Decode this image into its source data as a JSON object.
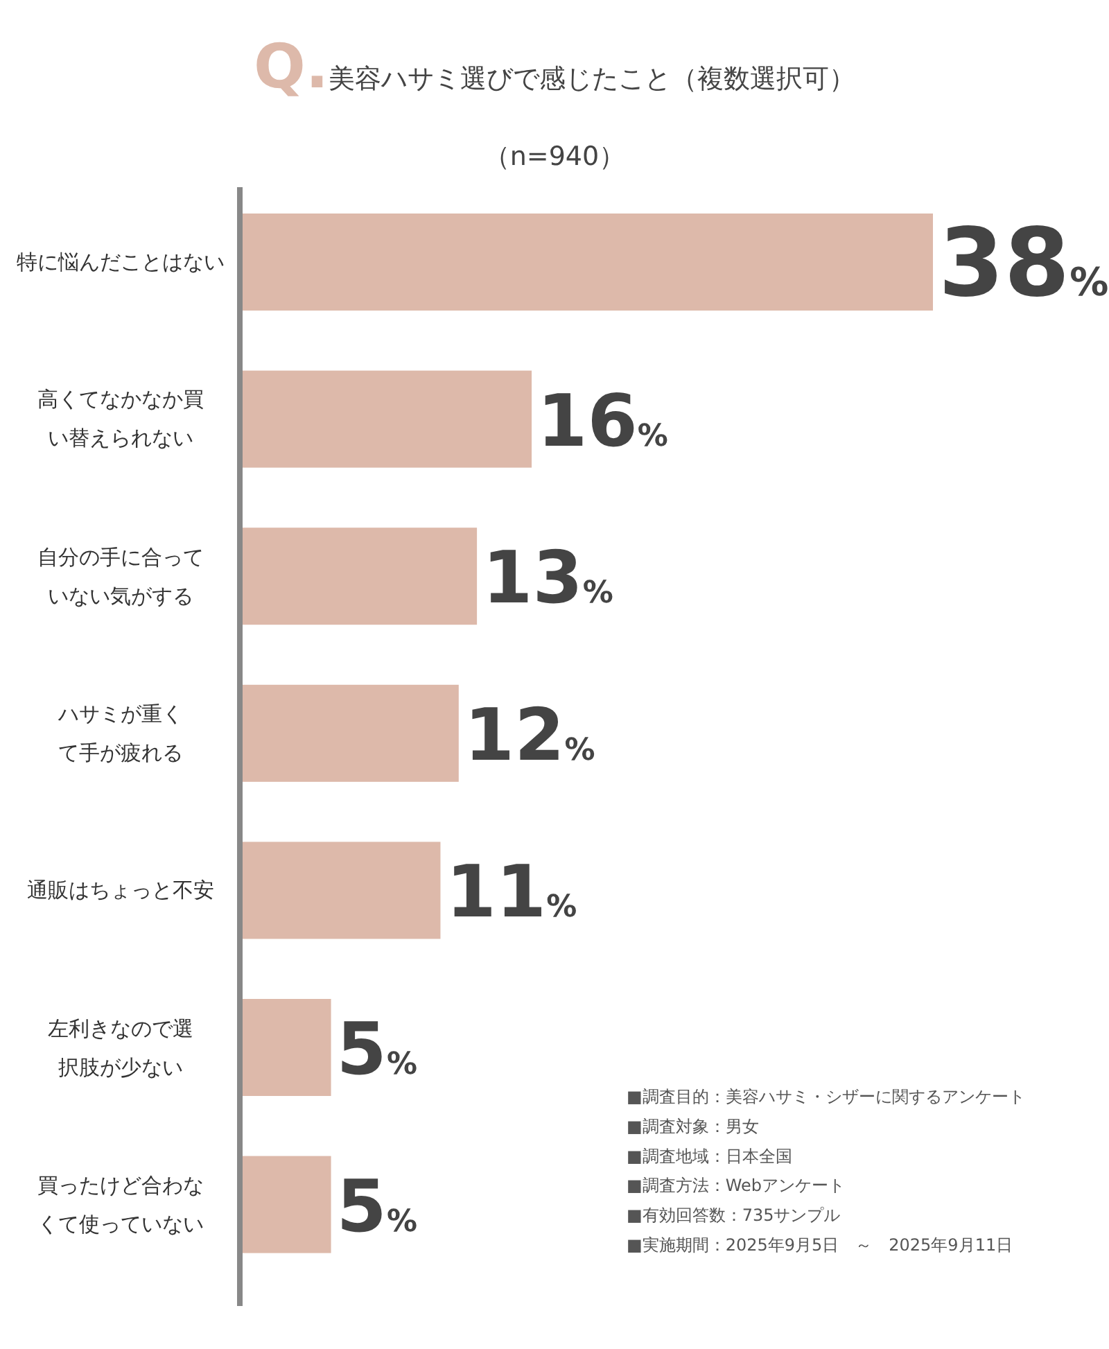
{
  "chart_data": {
    "type": "bar",
    "orientation": "horizontal",
    "title": "**Q.**美容ハサミ選びで感じたこと（複数選択可）",
    "subtitle": "（n=940）",
    "categories": [
      "特に悩んだことはない",
      "高くてなかなか買い替えられない",
      "自分の手に合っていない気がする",
      "ハサミが重くて手が疲れる",
      "通販はちょっと不安",
      "左利きなので選択肢が少ない",
      "買ったけど合わなくて使っていない"
    ],
    "values": [
      38,
      16,
      13,
      12,
      11,
      5,
      5
    ],
    "value_labels": [
      "38%",
      "16%",
      "13%",
      "12%",
      "11%",
      "5%",
      "5%"
    ],
    "color": "#ddb9aa",
    "annotations": [
      "■調査目的：美容ハサミ・シザーに関するアンケート",
      "■調査対象：男女",
      "■調査地域：日本全国",
      "■調査方法：Webアンケート",
      "■有効回答数：735サンプル",
      "■実施期間：2025年9月5日　～　2025年9月11日"
    ]
  }
}
